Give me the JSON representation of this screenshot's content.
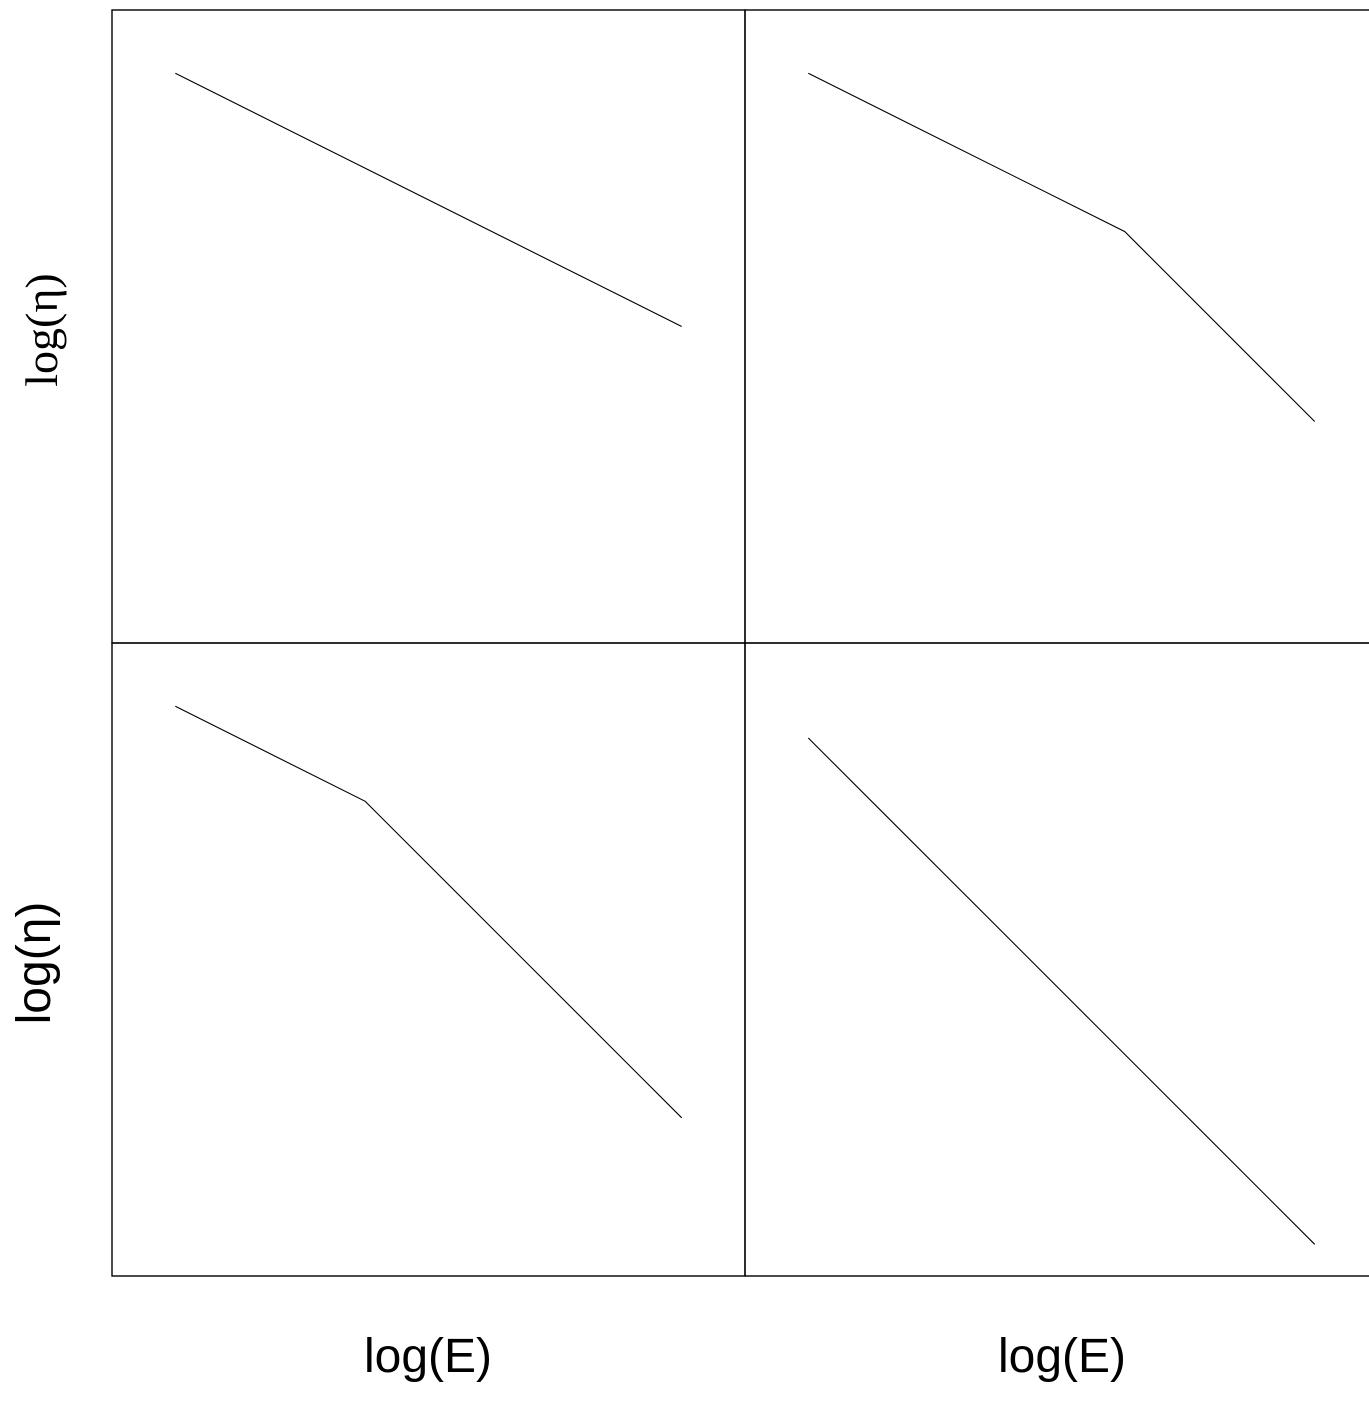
{
  "figure": {
    "xlabel_left": "log(E)",
    "xlabel_right": "log(E)",
    "ylabel_top": "log(η)",
    "ylabel_bottom": "log(η)"
  },
  "chart_data": [
    {
      "type": "line",
      "panel": "top-left",
      "xlabel": "",
      "ylabel": "log(η)",
      "xlim": [
        0,
        10
      ],
      "ylim": [
        0,
        10
      ],
      "grid": false,
      "series": [
        {
          "x": [
            1.0,
            9.0
          ],
          "y": [
            9.0,
            5.0
          ]
        }
      ]
    },
    {
      "type": "line",
      "panel": "top-right",
      "xlabel": "",
      "ylabel": "",
      "xlim": [
        0,
        10
      ],
      "ylim": [
        0,
        10
      ],
      "grid": false,
      "series": [
        {
          "x": [
            1.0,
            6.0,
            9.0
          ],
          "y": [
            9.0,
            6.5,
            3.5
          ]
        }
      ]
    },
    {
      "type": "line",
      "panel": "bottom-left",
      "xlabel": "log(E)",
      "ylabel": "log(η)",
      "xlim": [
        0,
        10
      ],
      "ylim": [
        0,
        10
      ],
      "grid": false,
      "series": [
        {
          "x": [
            1.0,
            4.0,
            9.0
          ],
          "y": [
            9.0,
            7.5,
            2.5
          ]
        }
      ]
    },
    {
      "type": "line",
      "panel": "bottom-right",
      "xlabel": "log(E)",
      "ylabel": "",
      "xlim": [
        0,
        10
      ],
      "ylim": [
        0,
        10
      ],
      "grid": false,
      "series": [
        {
          "x": [
            1.0,
            9.0
          ],
          "y": [
            8.5,
            0.5
          ]
        }
      ]
    }
  ]
}
